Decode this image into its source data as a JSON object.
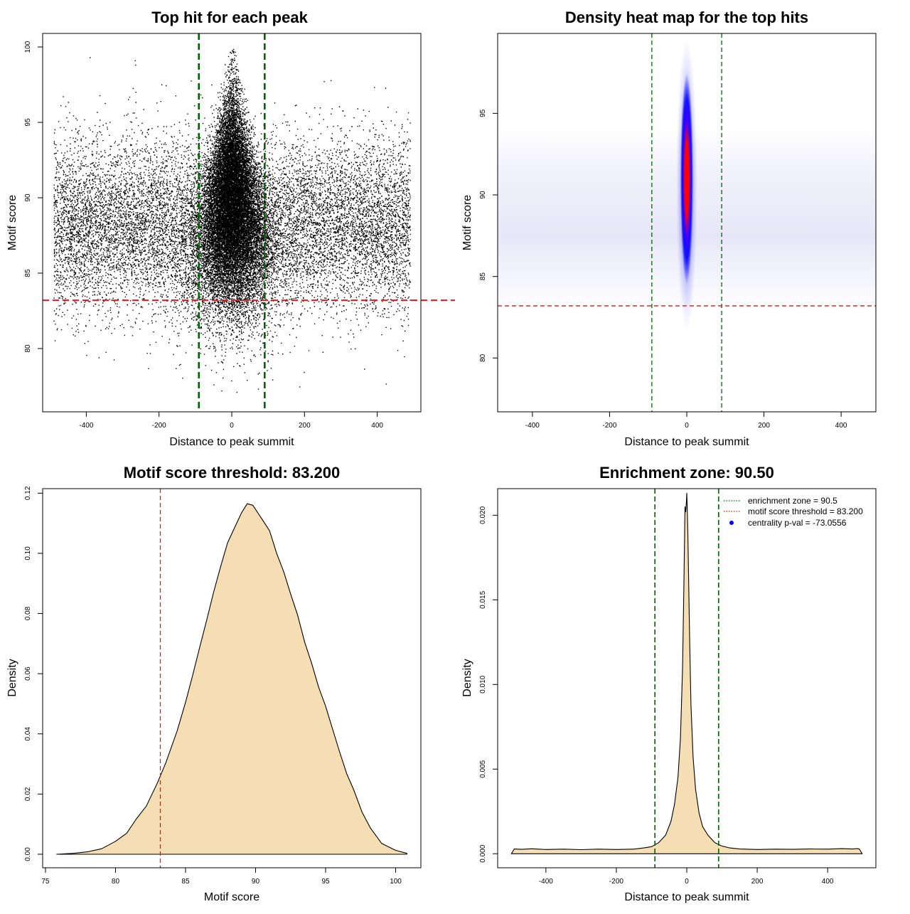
{
  "chart_data": [
    {
      "type": "scatter",
      "title": "Top hit for each peak",
      "xlabel": "Distance to peak summit",
      "ylabel": "Motif score",
      "xlim": [
        -520,
        520
      ],
      "ylim": [
        75.8,
        100.9
      ],
      "x_ticks": [
        "-400",
        "-200",
        "0",
        "200",
        "400"
      ],
      "x_tick_values": [
        -400,
        -200,
        0,
        200,
        400
      ],
      "y_ticks": [
        "80",
        "85",
        "90",
        "95",
        "100"
      ],
      "y_tick_values": [
        80,
        85,
        90,
        95,
        100
      ],
      "vlines": [
        -90.5,
        90.5
      ],
      "hline": 83.2,
      "vline_color": "#006400",
      "hline_color": "#e41a1c",
      "point_color": "#000000"
    },
    {
      "type": "heatmap",
      "title": "Density heat map for the top hits",
      "xlabel": "Distance to peak summit",
      "ylabel": "Motif score",
      "xlim": [
        -490,
        490
      ],
      "ylim": [
        76.7,
        99.9
      ],
      "x_ticks": [
        "-400",
        "-200",
        "0",
        "200",
        "400"
      ],
      "x_tick_values": [
        -400,
        -200,
        0,
        200,
        400
      ],
      "y_ticks": [
        "80",
        "85",
        "90",
        "95"
      ],
      "y_tick_values": [
        80,
        85,
        90,
        95
      ],
      "vlines": [
        -90.5,
        90.5
      ],
      "hline": 83.2,
      "color_ramp": [
        "#ffffff",
        "#0000ff",
        "#ff0000"
      ]
    },
    {
      "type": "area",
      "title": "Motif score threshold: 83.200",
      "xlabel": "Motif score",
      "ylabel": "Density",
      "xlim": [
        74.8,
        101.8
      ],
      "ylim": [
        -0.0045,
        0.1215
      ],
      "x_ticks": [
        "75",
        "80",
        "85",
        "90",
        "95",
        "100"
      ],
      "x_tick_values": [
        75,
        80,
        85,
        90,
        95,
        100
      ],
      "y_ticks": [
        "0.00",
        "0.02",
        "0.04",
        "0.06",
        "0.08",
        "0.10",
        "0.12"
      ],
      "y_tick_values": [
        0,
        0.02,
        0.04,
        0.06,
        0.08,
        0.1,
        0.12
      ],
      "vline": 83.2,
      "fill_color": "#f5deb3",
      "x": [
        75.8,
        77,
        78,
        79,
        80,
        80.8,
        81.5,
        82.2,
        83,
        83.6,
        84.4,
        85,
        85.5,
        86,
        86.5,
        87,
        87.5,
        88,
        88.5,
        89,
        89.4,
        89.8,
        90.3,
        91,
        91.5,
        92,
        92.5,
        93,
        93.5,
        94,
        94.5,
        95,
        95.5,
        96,
        96.5,
        97,
        97.6,
        98.2,
        99,
        100,
        100.8
      ],
      "values": [
        0.0,
        0.0003,
        0.0008,
        0.0018,
        0.0043,
        0.007,
        0.0118,
        0.016,
        0.0238,
        0.0305,
        0.041,
        0.0505,
        0.0593,
        0.0686,
        0.0776,
        0.087,
        0.0955,
        0.1035,
        0.1085,
        0.1135,
        0.1165,
        0.116,
        0.1125,
        0.1075,
        0.1,
        0.094,
        0.0865,
        0.0795,
        0.0705,
        0.0635,
        0.0555,
        0.0492,
        0.0415,
        0.034,
        0.0268,
        0.0215,
        0.014,
        0.0087,
        0.0036,
        0.0013,
        0.0003
      ]
    },
    {
      "type": "area",
      "title": "Enrichment zone: 90.50",
      "xlabel": "Distance to peak summit",
      "ylabel": "Density",
      "xlim": [
        -537,
        537
      ],
      "ylim": [
        -0.00083,
        0.02157
      ],
      "x_ticks": [
        "-400",
        "-200",
        "0",
        "200",
        "400"
      ],
      "x_tick_values": [
        -400,
        -200,
        0,
        200,
        400
      ],
      "y_ticks": [
        "0.000",
        "0.005",
        "0.010",
        "0.015",
        "0.020"
      ],
      "y_tick_values": [
        0,
        0.005,
        0.01,
        0.015,
        0.02
      ],
      "vlines": [
        -90.5,
        90.5
      ],
      "fill_color": "#f5deb3",
      "x": [
        -498,
        -490,
        -470,
        -440,
        -400,
        -350,
        -300,
        -250,
        -200,
        -150,
        -120,
        -100,
        -80,
        -60,
        -45,
        -35,
        -25,
        -18,
        -12,
        -8,
        -5,
        -3,
        -1,
        0,
        1,
        3,
        5,
        8,
        12,
        18,
        25,
        35,
        45,
        60,
        80,
        100,
        120,
        150,
        200,
        250,
        300,
        350,
        400,
        440,
        470,
        485,
        490,
        498
      ],
      "values": [
        0.0,
        0.00028,
        0.00026,
        0.00029,
        0.00025,
        0.00027,
        0.00024,
        0.00027,
        0.00025,
        0.00027,
        0.00035,
        0.00042,
        0.00065,
        0.0011,
        0.0019,
        0.0029,
        0.0045,
        0.0068,
        0.011,
        0.016,
        0.0205,
        0.0202,
        0.0208,
        0.0213,
        0.0207,
        0.019,
        0.0165,
        0.0128,
        0.0088,
        0.0057,
        0.0038,
        0.0024,
        0.0016,
        0.0011,
        0.00065,
        0.00045,
        0.00035,
        0.00028,
        0.00025,
        0.00027,
        0.00026,
        0.00028,
        0.00027,
        0.0003,
        0.00028,
        0.0003,
        0.00028,
        0.0
      ],
      "legend": {
        "position": "top-right",
        "entries": [
          {
            "label": "enrichment zone = 90.5",
            "color": "#006400",
            "style": "dotted-line"
          },
          {
            "label": "motif score threshold = 83.200",
            "color": "#e41a1c",
            "style": "dotted-line"
          },
          {
            "label": "centrality p-val = -73.0556",
            "color": "#0000ff",
            "style": "point"
          }
        ]
      }
    }
  ]
}
